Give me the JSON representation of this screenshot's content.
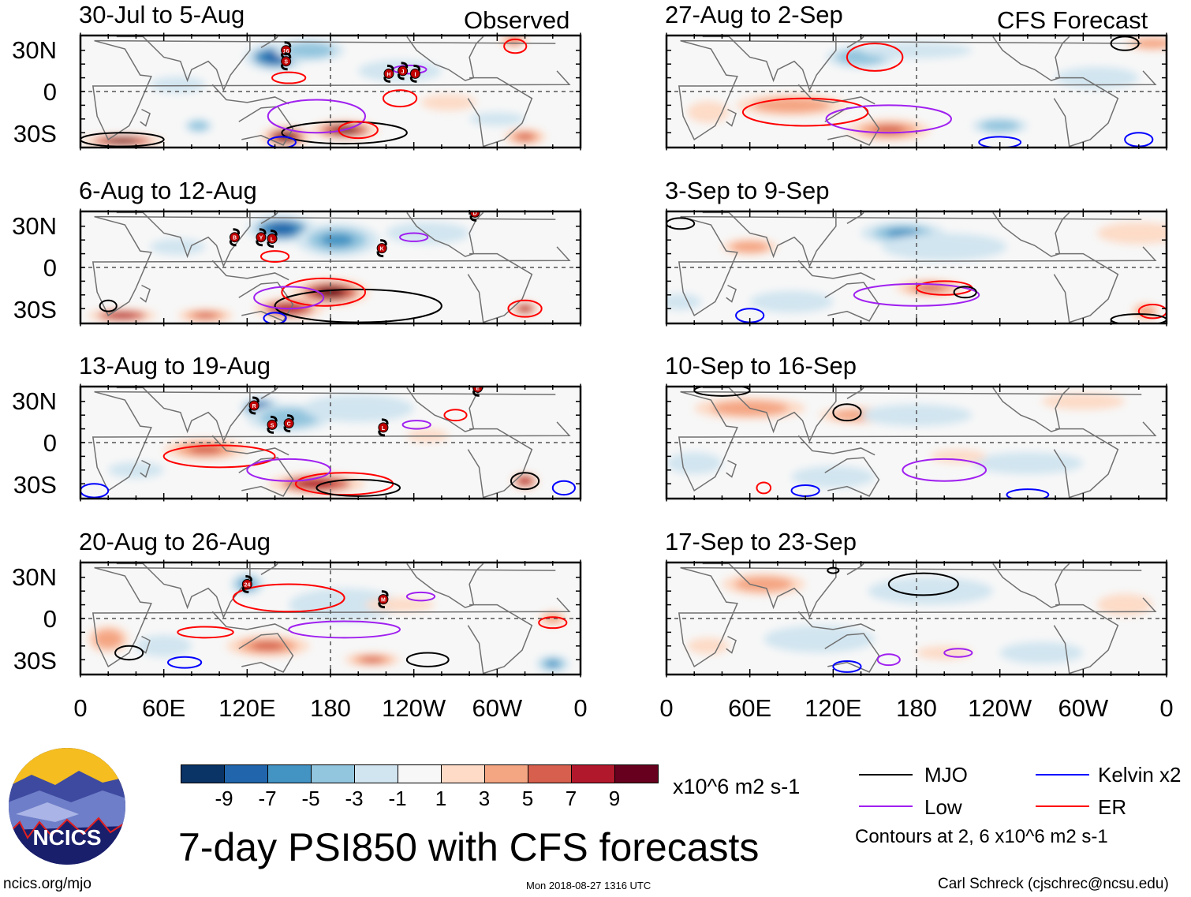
{
  "headers": {
    "observed": "Observed",
    "forecast": "CFS Forecast"
  },
  "lat_labels": [
    "30N",
    "0",
    "30S"
  ],
  "lon_labels": [
    "0",
    "60E",
    "120E",
    "180",
    "120W",
    "60W",
    "0"
  ],
  "colors": {
    "levels": [
      "#0a3366",
      "#2166ac",
      "#4393c3",
      "#92c5de",
      "#d1e5f0",
      "#f7f7f7",
      "#fddbc7",
      "#f4a582",
      "#d6604d",
      "#b2182b",
      "#67001f"
    ],
    "mjo": "#000000",
    "kelvin": "#0000ff",
    "low": "#a020f0",
    "er": "#ff0000",
    "land": "#707070"
  },
  "colorbar": {
    "labels": [
      "-9",
      "-7",
      "-5",
      "-3",
      "-1",
      "1",
      "3",
      "5",
      "7",
      "9"
    ],
    "units": "x10^6 m2 s-1"
  },
  "legend": {
    "mjo": "MJO",
    "kelvin": "Kelvin x2",
    "low": "Low",
    "er": "ER",
    "note": "Contours at 2, 6 x10^6 m2 s-1"
  },
  "title": "7-day PSI850 with CFS forecasts",
  "footer": {
    "left": "ncics.org/mjo",
    "center": "Mon 2018-08-27 1316 UTC",
    "right": "Carl Schreck (cjschrec@ncsu.edu)"
  },
  "logo": {
    "text": "NCICS"
  },
  "panels": [
    {
      "title": "30-Jul to 5-Aug",
      "kind": "observed",
      "blobs": [
        [
          140,
          25,
          -9,
          22,
          10
        ],
        [
          165,
          30,
          -5,
          25,
          8
        ],
        [
          70,
          5,
          -3,
          20,
          6
        ],
        [
          85,
          -25,
          -5,
          10,
          5
        ],
        [
          230,
          15,
          -2,
          30,
          8
        ],
        [
          300,
          -20,
          -3,
          20,
          5
        ],
        [
          148,
          -33,
          9,
          18,
          8
        ],
        [
          190,
          -28,
          9,
          25,
          7
        ],
        [
          30,
          -36,
          9,
          30,
          5
        ],
        [
          320,
          -33,
          5,
          15,
          6
        ],
        [
          312,
          37,
          5,
          10,
          5
        ],
        [
          265,
          -8,
          2,
          20,
          6
        ]
      ],
      "contours": [
        [
          "mjo",
          190,
          -30,
          45,
          8
        ],
        [
          "mjo",
          30,
          -35,
          30,
          5
        ],
        [
          "low",
          170,
          -18,
          35,
          12
        ],
        [
          "er",
          150,
          10,
          12,
          4
        ],
        [
          "er",
          230,
          -5,
          12,
          6
        ],
        [
          "er",
          200,
          -28,
          14,
          6
        ],
        [
          "er",
          313,
          33,
          8,
          5
        ],
        [
          "low",
          237,
          16,
          12,
          3
        ],
        [
          "kelvin",
          145,
          -37,
          10,
          4
        ]
      ],
      "storms": [
        [
          148,
          30,
          "16"
        ],
        [
          148,
          22,
          "S"
        ],
        [
          222,
          13,
          "H"
        ],
        [
          232,
          15,
          "J"
        ],
        [
          241,
          13,
          "I"
        ]
      ]
    },
    {
      "title": "6-Aug to 12-Aug",
      "kind": "observed",
      "blobs": [
        [
          145,
          28,
          -9,
          25,
          10
        ],
        [
          185,
          20,
          -7,
          30,
          12
        ],
        [
          70,
          15,
          -3,
          20,
          6
        ],
        [
          250,
          25,
          -2,
          30,
          8
        ],
        [
          180,
          -18,
          9,
          28,
          10
        ],
        [
          150,
          -30,
          7,
          25,
          8
        ],
        [
          30,
          -35,
          7,
          25,
          5
        ],
        [
          320,
          -30,
          7,
          10,
          5
        ],
        [
          90,
          -35,
          5,
          20,
          5
        ]
      ],
      "contours": [
        [
          "mjo",
          200,
          -28,
          60,
          12
        ],
        [
          "er",
          175,
          -18,
          30,
          10
        ],
        [
          "low",
          150,
          -22,
          25,
          8
        ],
        [
          "low",
          240,
          22,
          10,
          3
        ],
        [
          "er",
          140,
          8,
          10,
          4
        ],
        [
          "mjo",
          20,
          -28,
          6,
          4
        ],
        [
          "er",
          320,
          -30,
          12,
          6
        ],
        [
          "kelvin",
          140,
          -37,
          8,
          4
        ]
      ],
      "storms": [
        [
          111,
          22,
          "B"
        ],
        [
          130,
          22,
          "Y"
        ],
        [
          138,
          21,
          "L"
        ],
        [
          217,
          14,
          "K"
        ],
        [
          284,
          40,
          "D"
        ]
      ]
    },
    {
      "title": "13-Aug to 19-Aug",
      "kind": "observed",
      "blobs": [
        [
          130,
          25,
          -9,
          15,
          8
        ],
        [
          150,
          18,
          -5,
          30,
          10
        ],
        [
          200,
          25,
          -2,
          40,
          10
        ],
        [
          40,
          -20,
          -3,
          20,
          6
        ],
        [
          90,
          -5,
          5,
          30,
          8
        ],
        [
          170,
          -30,
          7,
          35,
          8
        ],
        [
          320,
          -28,
          7,
          10,
          6
        ],
        [
          250,
          5,
          2,
          15,
          5
        ]
      ],
      "contours": [
        [
          "er",
          100,
          -10,
          40,
          8
        ],
        [
          "er",
          190,
          -30,
          35,
          8
        ],
        [
          "low",
          150,
          -20,
          30,
          8
        ],
        [
          "mjo",
          200,
          -33,
          30,
          6
        ],
        [
          "low",
          242,
          13,
          10,
          3
        ],
        [
          "er",
          270,
          20,
          8,
          4
        ],
        [
          "mjo",
          320,
          -28,
          10,
          6
        ],
        [
          "kelvin",
          10,
          -35,
          10,
          5
        ],
        [
          "kelvin",
          348,
          -33,
          8,
          5
        ]
      ],
      "storms": [
        [
          125,
          27,
          "R"
        ],
        [
          138,
          13,
          "S"
        ],
        [
          150,
          14,
          "C"
        ],
        [
          218,
          11,
          "L"
        ],
        [
          286,
          40,
          "E"
        ]
      ]
    },
    {
      "title": "20-Aug to 26-Aug",
      "kind": "observed",
      "blobs": [
        [
          120,
          25,
          -7,
          12,
          8
        ],
        [
          190,
          10,
          -3,
          40,
          12
        ],
        [
          340,
          -33,
          -7,
          12,
          6
        ],
        [
          60,
          -20,
          -3,
          20,
          8
        ],
        [
          135,
          -20,
          5,
          30,
          8
        ],
        [
          210,
          -30,
          5,
          20,
          5
        ],
        [
          20,
          -15,
          3,
          15,
          10
        ],
        [
          340,
          0,
          4,
          10,
          5
        ],
        [
          230,
          10,
          2,
          25,
          5
        ]
      ],
      "contours": [
        [
          "er",
          150,
          15,
          40,
          10
        ],
        [
          "low",
          190,
          -8,
          40,
          6
        ],
        [
          "mjo",
          35,
          -25,
          10,
          5
        ],
        [
          "er",
          90,
          -10,
          20,
          4
        ],
        [
          "mjo",
          250,
          -30,
          15,
          5
        ],
        [
          "low",
          245,
          16,
          10,
          3
        ],
        [
          "er",
          340,
          -3,
          10,
          4
        ],
        [
          "kelvin",
          75,
          -32,
          12,
          4
        ]
      ],
      "storms": [
        [
          120,
          25,
          "24"
        ],
        [
          218,
          14,
          "M"
        ]
      ]
    },
    {
      "title": "27-Aug to 2-Sep",
      "kind": "forecast",
      "blobs": [
        [
          140,
          25,
          -5,
          25,
          8
        ],
        [
          180,
          30,
          -3,
          40,
          6
        ],
        [
          240,
          -25,
          -5,
          20,
          6
        ],
        [
          310,
          10,
          -2,
          30,
          8
        ],
        [
          90,
          -10,
          3,
          40,
          8
        ],
        [
          160,
          -28,
          5,
          30,
          8
        ],
        [
          350,
          35,
          3,
          20,
          5
        ],
        [
          30,
          -15,
          2,
          15,
          8
        ]
      ],
      "contours": [
        [
          "er",
          100,
          -15,
          45,
          10
        ],
        [
          "low",
          160,
          -20,
          45,
          10
        ],
        [
          "er",
          150,
          25,
          20,
          10
        ],
        [
          "mjo",
          330,
          35,
          10,
          5
        ],
        [
          "kelvin",
          340,
          -35,
          10,
          5
        ],
        [
          "kelvin",
          240,
          -37,
          15,
          4
        ]
      ],
      "storms": []
    },
    {
      "title": "3-Sep to 9-Sep",
      "kind": "forecast",
      "blobs": [
        [
          170,
          25,
          -7,
          30,
          8
        ],
        [
          200,
          15,
          -3,
          45,
          10
        ],
        [
          90,
          -25,
          -3,
          30,
          8
        ],
        [
          10,
          -25,
          -3,
          15,
          6
        ],
        [
          190,
          -15,
          5,
          25,
          6
        ],
        [
          340,
          25,
          2,
          30,
          8
        ],
        [
          60,
          15,
          3,
          20,
          6
        ],
        [
          345,
          -32,
          3,
          10,
          6
        ]
      ],
      "contours": [
        [
          "er",
          200,
          -15,
          20,
          5
        ],
        [
          "low",
          180,
          -20,
          45,
          8
        ],
        [
          "mjo",
          215,
          -18,
          8,
          4
        ],
        [
          "mjo",
          10,
          32,
          10,
          4
        ],
        [
          "kelvin",
          60,
          -35,
          10,
          5
        ],
        [
          "er",
          350,
          -32,
          10,
          5
        ],
        [
          "mjo",
          340,
          -38,
          20,
          4
        ]
      ],
      "storms": []
    },
    {
      "title": "10-Sep to 16-Sep",
      "kind": "forecast",
      "blobs": [
        [
          60,
          25,
          3,
          40,
          8
        ],
        [
          140,
          20,
          3,
          30,
          6
        ],
        [
          300,
          30,
          2,
          30,
          6
        ],
        [
          180,
          20,
          -2,
          40,
          8
        ],
        [
          120,
          -25,
          -3,
          30,
          8
        ],
        [
          260,
          -15,
          -2,
          40,
          8
        ],
        [
          20,
          -15,
          -2,
          20,
          8
        ],
        [
          210,
          -10,
          2,
          20,
          5
        ]
      ],
      "contours": [
        [
          "mjo",
          130,
          22,
          10,
          6
        ],
        [
          "mjo",
          40,
          38,
          20,
          4
        ],
        [
          "low",
          200,
          -20,
          30,
          8
        ],
        [
          "kelvin",
          100,
          -35,
          10,
          4
        ],
        [
          "er",
          70,
          -33,
          5,
          4
        ],
        [
          "kelvin",
          260,
          -38,
          15,
          4
        ]
      ],
      "storms": []
    },
    {
      "title": "17-Sep to 23-Sep",
      "kind": "forecast",
      "blobs": [
        [
          70,
          25,
          3,
          30,
          8
        ],
        [
          190,
          20,
          -2,
          45,
          10
        ],
        [
          110,
          -15,
          -2,
          40,
          10
        ],
        [
          270,
          -25,
          -2,
          30,
          8
        ],
        [
          330,
          10,
          2,
          20,
          8
        ],
        [
          30,
          -20,
          2,
          15,
          6
        ],
        [
          200,
          -25,
          2,
          20,
          5
        ]
      ],
      "contours": [
        [
          "mjo",
          185,
          25,
          25,
          8
        ],
        [
          "mjo",
          120,
          35,
          4,
          2
        ],
        [
          "low",
          160,
          -30,
          8,
          4
        ],
        [
          "low",
          210,
          -25,
          10,
          3
        ],
        [
          "kelvin",
          130,
          -35,
          10,
          4
        ]
      ],
      "storms": []
    }
  ]
}
